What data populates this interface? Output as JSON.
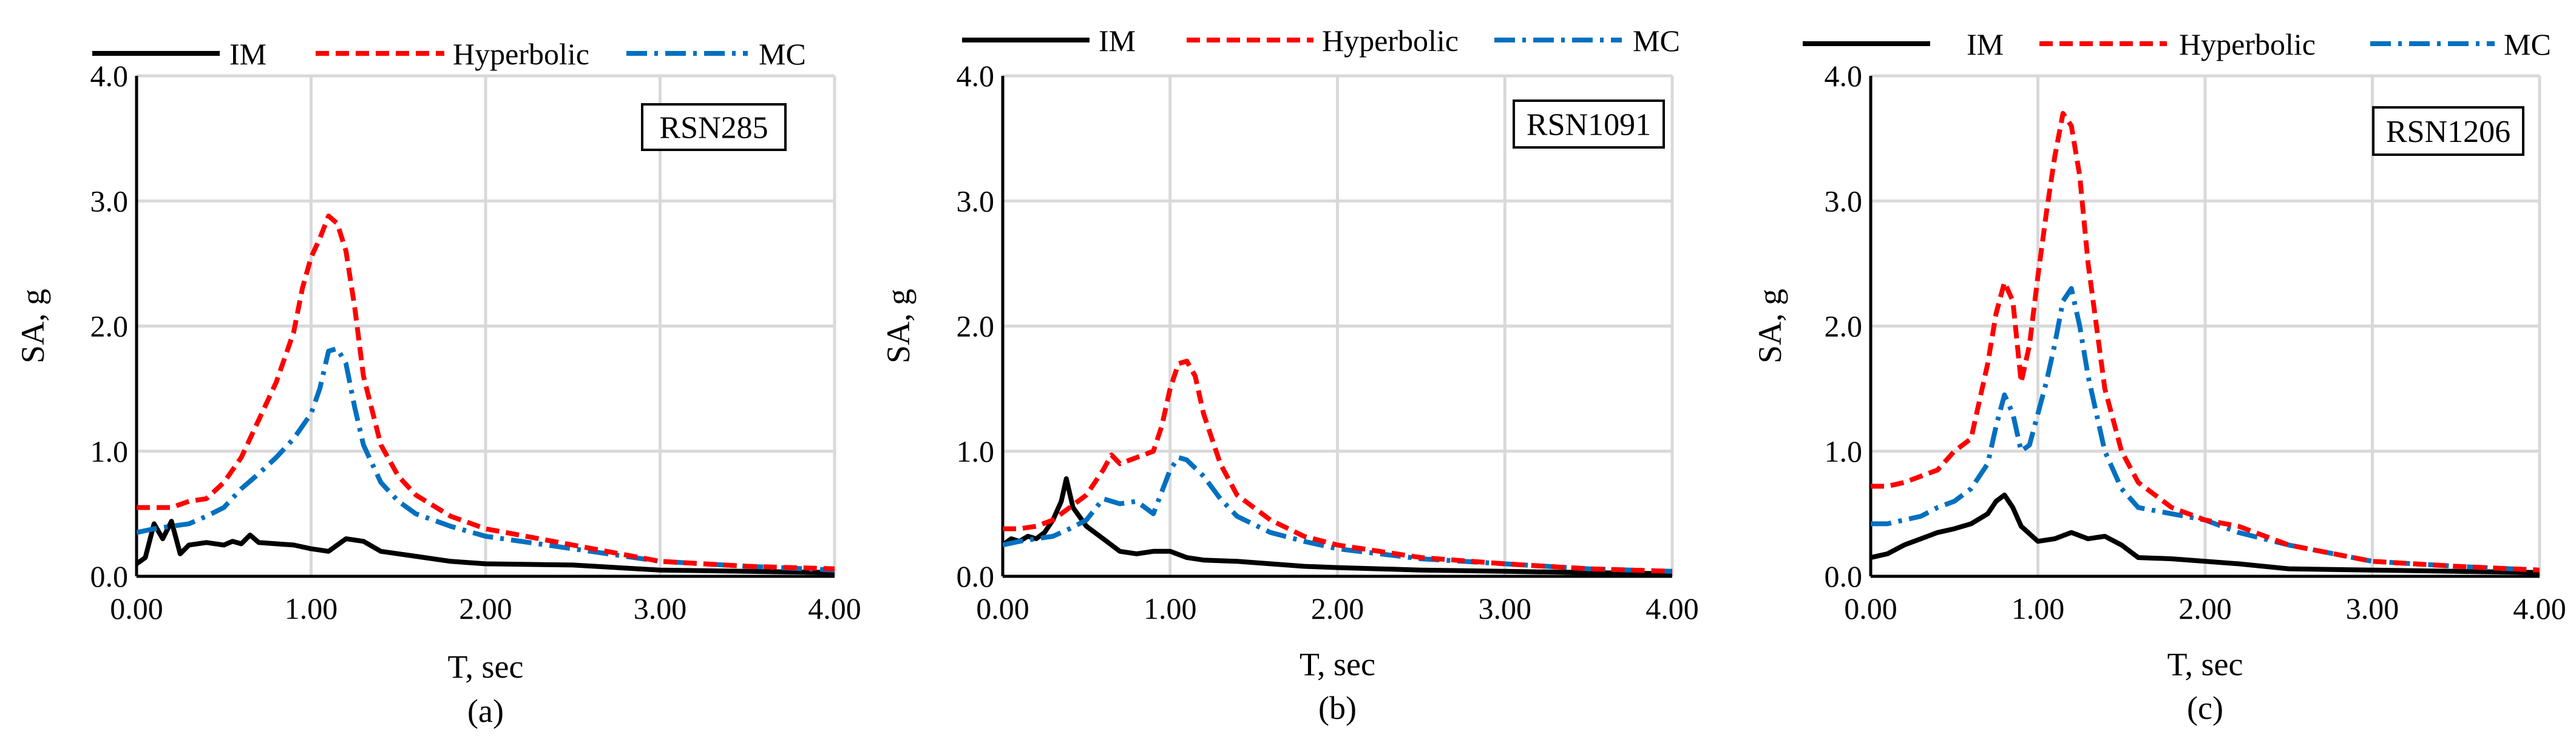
{
  "figure": {
    "panels_count": 3
  },
  "colors": {
    "IM": "#000000",
    "Hyperbolic": "#ff0000",
    "MC": "#0070c0",
    "grid": "#d9d9d9",
    "axis": "#000000"
  },
  "chart_data": [
    {
      "type": "line",
      "panel_label": "(a)",
      "record": "RSN285",
      "xlabel": "T, sec",
      "ylabel": "SA, g",
      "xlim": [
        0,
        4
      ],
      "ylim": [
        0,
        4
      ],
      "xticks": [
        "0.00",
        "1.00",
        "2.00",
        "3.00",
        "4.00"
      ],
      "yticks": [
        "0.0",
        "1.0",
        "2.0",
        "3.0",
        "4.0"
      ],
      "grid": true,
      "legend": "top",
      "series": [
        {
          "name": "IM",
          "style": "solid",
          "x": [
            0.0,
            0.05,
            0.1,
            0.15,
            0.2,
            0.25,
            0.3,
            0.4,
            0.5,
            0.55,
            0.6,
            0.65,
            0.7,
            0.8,
            0.9,
            1.0,
            1.1,
            1.2,
            1.3,
            1.4,
            1.6,
            1.8,
            2.0,
            2.5,
            3.0,
            3.5,
            4.0
          ],
          "y": [
            0.1,
            0.15,
            0.42,
            0.3,
            0.44,
            0.18,
            0.25,
            0.27,
            0.25,
            0.28,
            0.26,
            0.33,
            0.27,
            0.26,
            0.25,
            0.22,
            0.2,
            0.3,
            0.28,
            0.2,
            0.16,
            0.12,
            0.1,
            0.09,
            0.05,
            0.04,
            0.03
          ]
        },
        {
          "name": "Hyperbolic",
          "style": "dash",
          "x": [
            0.0,
            0.1,
            0.2,
            0.3,
            0.4,
            0.5,
            0.6,
            0.7,
            0.8,
            0.9,
            0.95,
            1.0,
            1.05,
            1.1,
            1.15,
            1.2,
            1.25,
            1.3,
            1.4,
            1.5,
            1.6,
            1.8,
            2.0,
            2.5,
            3.0,
            3.5,
            4.0
          ],
          "y": [
            0.55,
            0.55,
            0.55,
            0.6,
            0.62,
            0.75,
            0.95,
            1.25,
            1.55,
            1.95,
            2.3,
            2.55,
            2.7,
            2.88,
            2.82,
            2.6,
            2.15,
            1.6,
            1.05,
            0.8,
            0.65,
            0.48,
            0.38,
            0.25,
            0.12,
            0.08,
            0.06
          ]
        },
        {
          "name": "MC",
          "style": "dashdot",
          "x": [
            0.0,
            0.1,
            0.2,
            0.3,
            0.4,
            0.5,
            0.6,
            0.7,
            0.8,
            0.9,
            1.0,
            1.05,
            1.1,
            1.15,
            1.2,
            1.25,
            1.3,
            1.4,
            1.5,
            1.6,
            1.8,
            2.0,
            2.5,
            3.0,
            3.5,
            4.0
          ],
          "y": [
            0.35,
            0.38,
            0.4,
            0.42,
            0.48,
            0.55,
            0.7,
            0.82,
            0.95,
            1.1,
            1.3,
            1.5,
            1.8,
            1.82,
            1.7,
            1.35,
            1.05,
            0.75,
            0.6,
            0.5,
            0.4,
            0.32,
            0.22,
            0.12,
            0.08,
            0.05
          ]
        }
      ]
    },
    {
      "type": "line",
      "panel_label": "(b)",
      "record": "RSN1091",
      "xlabel": "T, sec",
      "ylabel": "SA, g",
      "xlim": [
        0,
        4
      ],
      "ylim": [
        0,
        4
      ],
      "xticks": [
        "0.00",
        "1.00",
        "2.00",
        "3.00",
        "4.00"
      ],
      "yticks": [
        "0.0",
        "1.0",
        "2.0",
        "3.0",
        "4.0"
      ],
      "grid": true,
      "legend": "top",
      "series": [
        {
          "name": "IM",
          "style": "solid",
          "x": [
            0.0,
            0.05,
            0.1,
            0.15,
            0.2,
            0.25,
            0.3,
            0.35,
            0.38,
            0.42,
            0.5,
            0.6,
            0.7,
            0.8,
            0.9,
            1.0,
            1.1,
            1.2,
            1.4,
            1.6,
            1.8,
            2.0,
            2.5,
            3.0,
            3.5,
            4.0
          ],
          "y": [
            0.25,
            0.3,
            0.28,
            0.32,
            0.3,
            0.35,
            0.45,
            0.6,
            0.78,
            0.55,
            0.4,
            0.3,
            0.2,
            0.18,
            0.2,
            0.2,
            0.15,
            0.13,
            0.12,
            0.1,
            0.08,
            0.07,
            0.05,
            0.04,
            0.03,
            0.02
          ]
        },
        {
          "name": "Hyperbolic",
          "style": "dash",
          "x": [
            0.0,
            0.1,
            0.2,
            0.3,
            0.4,
            0.5,
            0.6,
            0.65,
            0.7,
            0.8,
            0.9,
            0.95,
            1.0,
            1.05,
            1.1,
            1.15,
            1.2,
            1.3,
            1.4,
            1.6,
            1.8,
            2.0,
            2.5,
            3.0,
            3.5,
            4.0
          ],
          "y": [
            0.38,
            0.38,
            0.4,
            0.45,
            0.55,
            0.65,
            0.85,
            0.97,
            0.9,
            0.95,
            1.0,
            1.2,
            1.5,
            1.7,
            1.72,
            1.6,
            1.3,
            0.9,
            0.65,
            0.45,
            0.32,
            0.25,
            0.15,
            0.1,
            0.06,
            0.04
          ]
        },
        {
          "name": "MC",
          "style": "dashdot",
          "x": [
            0.0,
            0.1,
            0.2,
            0.3,
            0.4,
            0.5,
            0.6,
            0.7,
            0.8,
            0.9,
            1.0,
            1.05,
            1.1,
            1.2,
            1.3,
            1.4,
            1.6,
            1.8,
            2.0,
            2.5,
            3.0,
            3.5,
            4.0
          ],
          "y": [
            0.25,
            0.28,
            0.3,
            0.32,
            0.38,
            0.45,
            0.62,
            0.58,
            0.6,
            0.5,
            0.85,
            0.95,
            0.93,
            0.8,
            0.62,
            0.48,
            0.35,
            0.28,
            0.22,
            0.14,
            0.1,
            0.06,
            0.04
          ]
        }
      ]
    },
    {
      "type": "line",
      "panel_label": "(c)",
      "record": "RSN1206",
      "xlabel": "T, sec",
      "ylabel": "SA, g",
      "xlim": [
        0,
        4
      ],
      "ylim": [
        0,
        4
      ],
      "xticks": [
        "0.00",
        "1.00",
        "2.00",
        "3.00",
        "4.00"
      ],
      "yticks": [
        "0.0",
        "1.0",
        "2.0",
        "3.0",
        "4.0"
      ],
      "grid": true,
      "legend": "top",
      "series": [
        {
          "name": "IM",
          "style": "solid",
          "x": [
            0.0,
            0.1,
            0.2,
            0.3,
            0.4,
            0.5,
            0.6,
            0.7,
            0.75,
            0.8,
            0.85,
            0.9,
            1.0,
            1.1,
            1.2,
            1.3,
            1.4,
            1.5,
            1.6,
            1.8,
            2.0,
            2.2,
            2.5,
            3.0,
            3.5,
            4.0
          ],
          "y": [
            0.15,
            0.18,
            0.25,
            0.3,
            0.35,
            0.38,
            0.42,
            0.5,
            0.6,
            0.65,
            0.55,
            0.4,
            0.28,
            0.3,
            0.35,
            0.3,
            0.32,
            0.25,
            0.15,
            0.14,
            0.12,
            0.1,
            0.06,
            0.05,
            0.04,
            0.03
          ]
        },
        {
          "name": "Hyperbolic",
          "style": "dash",
          "x": [
            0.0,
            0.1,
            0.2,
            0.3,
            0.4,
            0.5,
            0.6,
            0.7,
            0.75,
            0.8,
            0.85,
            0.9,
            0.95,
            1.0,
            1.05,
            1.1,
            1.15,
            1.2,
            1.25,
            1.3,
            1.4,
            1.5,
            1.6,
            1.8,
            2.0,
            2.2,
            2.5,
            3.0,
            3.5,
            4.0
          ],
          "y": [
            0.72,
            0.72,
            0.75,
            0.8,
            0.85,
            1.0,
            1.1,
            1.7,
            2.1,
            2.35,
            2.2,
            1.55,
            1.85,
            2.4,
            2.9,
            3.35,
            3.7,
            3.6,
            3.2,
            2.5,
            1.5,
            1.0,
            0.75,
            0.55,
            0.45,
            0.4,
            0.25,
            0.12,
            0.08,
            0.05
          ]
        },
        {
          "name": "MC",
          "style": "dashdot",
          "x": [
            0.0,
            0.1,
            0.2,
            0.3,
            0.4,
            0.5,
            0.6,
            0.7,
            0.75,
            0.8,
            0.85,
            0.9,
            0.95,
            1.0,
            1.05,
            1.1,
            1.15,
            1.2,
            1.25,
            1.3,
            1.4,
            1.5,
            1.6,
            1.8,
            2.0,
            2.2,
            2.5,
            3.0,
            3.5,
            4.0
          ],
          "y": [
            0.42,
            0.42,
            0.45,
            0.48,
            0.55,
            0.6,
            0.7,
            0.9,
            1.2,
            1.45,
            1.3,
            1.0,
            1.05,
            1.3,
            1.55,
            1.85,
            2.2,
            2.3,
            2.0,
            1.6,
            1.0,
            0.7,
            0.55,
            0.5,
            0.45,
            0.35,
            0.25,
            0.12,
            0.08,
            0.05
          ]
        }
      ]
    }
  ]
}
